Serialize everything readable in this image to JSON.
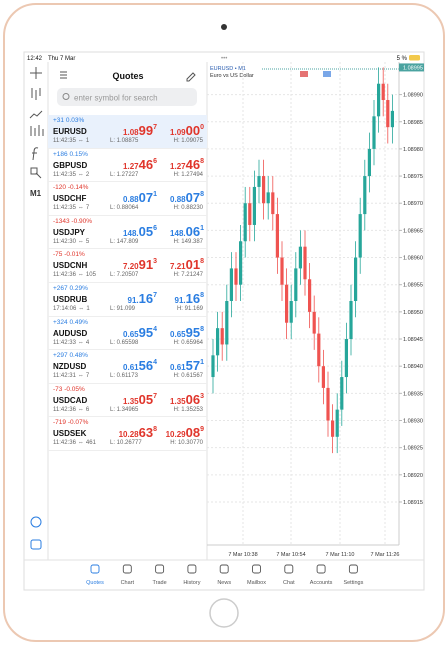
{
  "status_bar": {
    "time": "12:42",
    "date": "Thu 7 Mar",
    "battery": "5 %"
  },
  "toolbar": {
    "timeframe": "M1"
  },
  "quotes": {
    "title": "Quotes",
    "search_placeholder": "enter symbol for search",
    "rows": [
      {
        "change": "+31 0.03%",
        "change_color": "#2a7de1",
        "symbol": "EURUSD",
        "time": "11:42:35",
        "count": "1",
        "bid": [
          "1.08",
          "99",
          "7"
        ],
        "ask": [
          "1.09",
          "00",
          "0"
        ],
        "low": "L: 1.08875",
        "high": "H: 1.09075",
        "price_color": "#e0352b"
      },
      {
        "change": "+186 0.15%",
        "change_color": "#2a7de1",
        "symbol": "GBPUSD",
        "time": "11:42:35",
        "count": "2",
        "bid": [
          "1.27",
          "46",
          "6"
        ],
        "ask": [
          "1.27",
          "46",
          "8"
        ],
        "low": "L: 1.27227",
        "high": "H: 1.27494",
        "price_color": "#e0352b"
      },
      {
        "change": "-120 -0.14%",
        "change_color": "#e0352b",
        "symbol": "USDCHF",
        "time": "11:42:35",
        "count": "7",
        "bid": [
          "0.88",
          "07",
          "1"
        ],
        "ask": [
          "0.88",
          "07",
          "8"
        ],
        "low": "L: 0.88064",
        "high": "H: 0.88230",
        "price_color": "#2a7de1"
      },
      {
        "change": "-1343 -0.90%",
        "change_color": "#e0352b",
        "symbol": "USDJPY",
        "time": "11:42:30",
        "count": "5",
        "bid": [
          "148.",
          "05",
          "6"
        ],
        "ask": [
          "148.",
          "06",
          "1"
        ],
        "low": "L: 147.809",
        "high": "H: 149.387",
        "price_color": "#2a7de1"
      },
      {
        "change": "-75 -0.01%",
        "change_color": "#e0352b",
        "symbol": "USDCNH",
        "time": "11:42:36",
        "count": "105",
        "bid": [
          "7.20",
          "91",
          "3"
        ],
        "ask": [
          "7.21",
          "01",
          "8"
        ],
        "low": "L: 7.20507",
        "high": "H: 7.21247",
        "price_color": "#e0352b"
      },
      {
        "change": "+267 0.29%",
        "change_color": "#2a7de1",
        "symbol": "USDRUB",
        "time": "17:14:06",
        "count": "1",
        "bid": [
          "91.",
          "16",
          "7"
        ],
        "ask": [
          "91.",
          "16",
          "8"
        ],
        "low": "L: 91.099",
        "high": "H: 91.169",
        "price_color": "#2a7de1"
      },
      {
        "change": "+324 0.49%",
        "change_color": "#2a7de1",
        "symbol": "AUDUSD",
        "time": "11:42:33",
        "count": "4",
        "bid": [
          "0.65",
          "95",
          "4"
        ],
        "ask": [
          "0.65",
          "95",
          "8"
        ],
        "low": "L: 0.65598",
        "high": "H: 0.65964",
        "price_color": "#2a7de1"
      },
      {
        "change": "+297 0.48%",
        "change_color": "#2a7de1",
        "symbol": "NZDUSD",
        "time": "11:42:31",
        "count": "7",
        "bid": [
          "0.61",
          "56",
          "4"
        ],
        "ask": [
          "0.61",
          "57",
          "1"
        ],
        "low": "L: 0.61173",
        "high": "H: 0.61567",
        "price_color": "#2a7de1"
      },
      {
        "change": "-73 -0.05%",
        "change_color": "#e0352b",
        "symbol": "USDCAD",
        "time": "11:42:36",
        "count": "6",
        "bid": [
          "1.35",
          "05",
          "7"
        ],
        "ask": [
          "1.35",
          "06",
          "3"
        ],
        "low": "L: 1.34965",
        "high": "H: 1.35253",
        "price_color": "#e0352b"
      },
      {
        "change": "-719 -0.07%",
        "change_color": "#e0352b",
        "symbol": "USDSEK",
        "time": "11:42:36",
        "count": "461",
        "bid": [
          "10.28",
          "63",
          "8"
        ],
        "ask": [
          "10.29",
          "08",
          "9"
        ],
        "low": "L: 10.26777",
        "high": "H: 10.30770",
        "price_color": "#e0352b"
      }
    ]
  },
  "chart": {
    "type": "candlestick",
    "symbol": "EURUSD • M1",
    "description": "Euro vs US Dollar",
    "current_price": {
      "value": 1.08995,
      "label": "1.08995"
    },
    "ylim": [
      1.08908,
      1.08996
    ],
    "yticks": [
      {
        "value": 1.0899,
        "label": "1.08990"
      },
      {
        "value": 1.08985,
        "label": "1.08985"
      },
      {
        "value": 1.0898,
        "label": "1.08980"
      },
      {
        "value": 1.08975,
        "label": "1.08975"
      },
      {
        "value": 1.0897,
        "label": "1.08970"
      },
      {
        "value": 1.08965,
        "label": "1.08965"
      },
      {
        "value": 1.0896,
        "label": "1.08960"
      },
      {
        "value": 1.08955,
        "label": "1.08955"
      },
      {
        "value": 1.0895,
        "label": "1.08950"
      },
      {
        "value": 1.08945,
        "label": "1.08945"
      },
      {
        "value": 1.0894,
        "label": "1.08940"
      },
      {
        "value": 1.08935,
        "label": "1.08935"
      },
      {
        "value": 1.0893,
        "label": "1.08930"
      },
      {
        "value": 1.08925,
        "label": "1.08925"
      },
      {
        "value": 1.0892,
        "label": "1.08920"
      },
      {
        "value": 1.08915,
        "label": "1.08915"
      }
    ],
    "xlabels": [
      "7 Mar 10:38",
      "7 Mar 10:54",
      "7 Mar 11:10",
      "7 Mar 11:26"
    ],
    "up_color": "#26a69a",
    "down_color": "#ef5350",
    "candles": [
      [
        1.08938,
        1.08945,
        1.08935,
        1.08942
      ],
      [
        1.08942,
        1.0895,
        1.08939,
        1.08947
      ],
      [
        1.08947,
        1.0895,
        1.08941,
        1.08944
      ],
      [
        1.08944,
        1.08955,
        1.08941,
        1.08952
      ],
      [
        1.08952,
        1.08961,
        1.08949,
        1.08958
      ],
      [
        1.08958,
        1.08961,
        1.08952,
        1.08955
      ],
      [
        1.08955,
        1.08966,
        1.08952,
        1.08963
      ],
      [
        1.08963,
        1.08973,
        1.0896,
        1.0897
      ],
      [
        1.0897,
        1.08973,
        1.08963,
        1.08966
      ],
      [
        1.08966,
        1.08976,
        1.08963,
        1.08973
      ],
      [
        1.08973,
        1.08978,
        1.0897,
        1.08975
      ],
      [
        1.08975,
        1.08978,
        1.08967,
        1.0897
      ],
      [
        1.0897,
        1.08975,
        1.08967,
        1.08972
      ],
      [
        1.08972,
        1.08975,
        1.08965,
        1.08968
      ],
      [
        1.08968,
        1.08971,
        1.08957,
        1.0896
      ],
      [
        1.0896,
        1.08963,
        1.08952,
        1.08955
      ],
      [
        1.08955,
        1.08958,
        1.08945,
        1.08948
      ],
      [
        1.08948,
        1.08955,
        1.08945,
        1.08952
      ],
      [
        1.08952,
        1.08961,
        1.08949,
        1.08958
      ],
      [
        1.08958,
        1.08965,
        1.08955,
        1.08962
      ],
      [
        1.08962,
        1.08965,
        1.08953,
        1.08956
      ],
      [
        1.08956,
        1.08959,
        1.08947,
        1.0895
      ],
      [
        1.0895,
        1.08953,
        1.08943,
        1.08946
      ],
      [
        1.08946,
        1.08949,
        1.08937,
        1.0894
      ],
      [
        1.0894,
        1.08943,
        1.08933,
        1.08936
      ],
      [
        1.08936,
        1.08939,
        1.08927,
        1.0893
      ],
      [
        1.0893,
        1.08933,
        1.08924,
        1.08927
      ],
      [
        1.08927,
        1.08935,
        1.08924,
        1.08932
      ],
      [
        1.08932,
        1.08941,
        1.08929,
        1.08938
      ],
      [
        1.08938,
        1.08948,
        1.08935,
        1.08945
      ],
      [
        1.08945,
        1.08955,
        1.08942,
        1.08952
      ],
      [
        1.08952,
        1.08963,
        1.08949,
        1.0896
      ],
      [
        1.0896,
        1.08971,
        1.08957,
        1.08968
      ],
      [
        1.08968,
        1.08978,
        1.08965,
        1.08975
      ],
      [
        1.08975,
        1.08983,
        1.08972,
        1.0898
      ],
      [
        1.0898,
        1.08989,
        1.08977,
        1.08986
      ],
      [
        1.08986,
        1.08995,
        1.08983,
        1.08992
      ],
      [
        1.08992,
        1.08995,
        1.08986,
        1.08989
      ],
      [
        1.08989,
        1.08992,
        1.08981,
        1.08984
      ],
      [
        1.08984,
        1.0899,
        1.08981,
        1.08987
      ]
    ]
  },
  "tabs": [
    "Quotes",
    "Chart",
    "Trade",
    "History",
    "News",
    "Mailbox",
    "Chat",
    "Accounts",
    "Settings"
  ],
  "active_tab": "Quotes"
}
